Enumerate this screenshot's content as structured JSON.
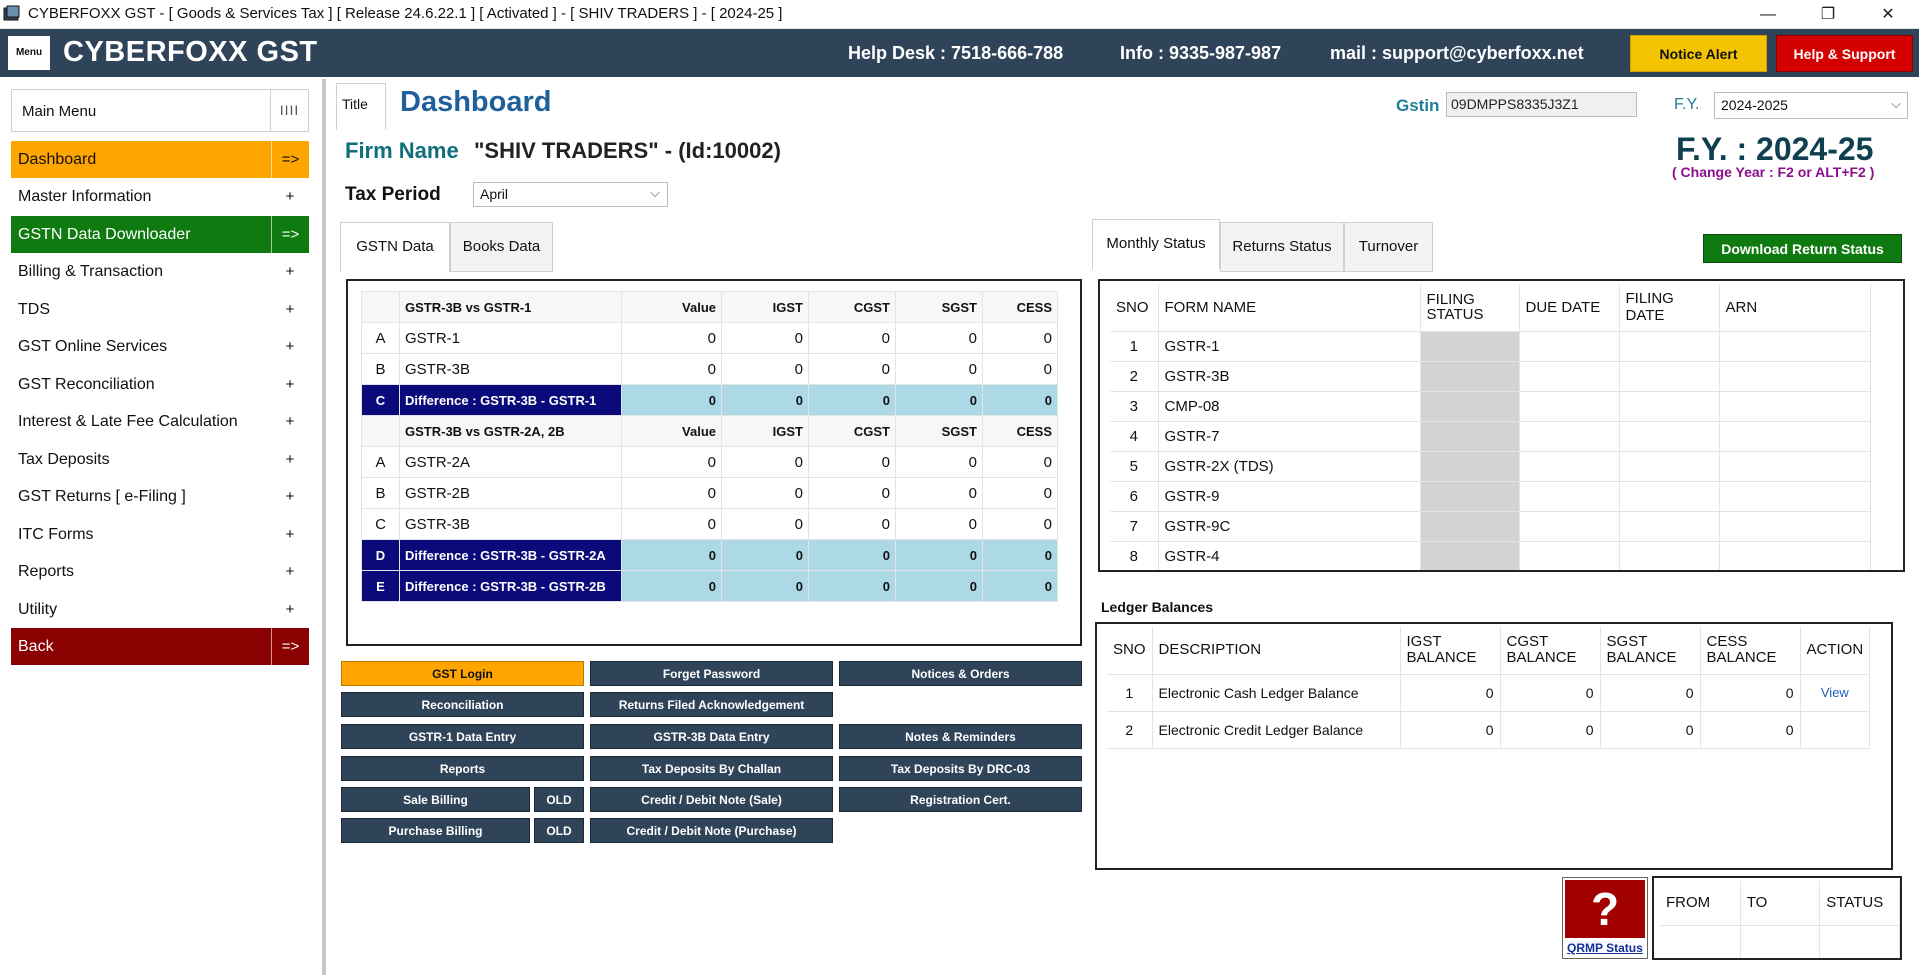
{
  "window": {
    "title": "CYBERFOXX GST - [ Goods & Services Tax ] [ Release 24.6.22.1 ] [ Activated ] - [ SHIV TRADERS ] - [ 2024-25 ]",
    "minimize": "—",
    "restore": "❐",
    "close": "✕"
  },
  "header": {
    "menu_label": "Menu",
    "brand": "CYBERFOXX GST",
    "helpdesk": "Help Desk : 7518-666-788",
    "info": "Info : 9335-987-987",
    "mail": "mail : support@cyberfoxx.net",
    "notice_alert": "Notice Alert",
    "help_support": "Help & Support"
  },
  "sidebar": {
    "main_menu": "Main Menu",
    "grip": "IIII",
    "items": [
      {
        "label": "Dashboard",
        "sign": "=>"
      },
      {
        "label": "Master Information",
        "sign": "+"
      },
      {
        "label": "GSTN Data Downloader",
        "sign": "=>"
      },
      {
        "label": "Billing & Transaction",
        "sign": "+"
      },
      {
        "label": "TDS",
        "sign": "+"
      },
      {
        "label": "GST Online Services",
        "sign": "+"
      },
      {
        "label": "GST Reconciliation",
        "sign": "+"
      },
      {
        "label": "Interest & Late Fee Calculation",
        "sign": "+"
      },
      {
        "label": "Tax Deposits",
        "sign": "+"
      },
      {
        "label": "GST Returns [ e-Filing ]",
        "sign": "+"
      },
      {
        "label": "ITC Forms",
        "sign": "+"
      },
      {
        "label": "Reports",
        "sign": "+"
      },
      {
        "label": "Utility",
        "sign": "+"
      },
      {
        "label": "Back",
        "sign": "=>"
      }
    ]
  },
  "page": {
    "title_tab": "Title",
    "title": "Dashboard",
    "gstin_label": "Gstin",
    "gstin_value": "09DMPPS8335J3Z1",
    "fy_label": "F.Y.",
    "fy_value": "2024-2025",
    "firm_label": "Firm Name",
    "firm_name": "\"SHIV TRADERS\" - (Id:10002)",
    "fy_big": "F.Y. : 2024-25",
    "fy_hint": "( Change Year : F2 or ALT+F2 )",
    "tax_period_label": "Tax Period",
    "tax_period_value": "April",
    "chevron": "⌵"
  },
  "left_tabs": [
    "GSTN Data",
    "Books Data"
  ],
  "gstn": {
    "section1": {
      "title": "GSTR-3B vs GSTR-1",
      "columns": [
        "Value",
        "IGST",
        "CGST",
        "SGST",
        "CESS"
      ],
      "rows": [
        {
          "letter": "A",
          "label": "GSTR-1",
          "values": [
            "0",
            "0",
            "0",
            "0",
            "0"
          ]
        },
        {
          "letter": "B",
          "label": "GSTR-3B",
          "values": [
            "0",
            "0",
            "0",
            "0",
            "0"
          ]
        },
        {
          "letter": "C",
          "label": "Difference : GSTR-3B - GSTR-1",
          "values": [
            "0",
            "0",
            "0",
            "0",
            "0"
          ]
        }
      ]
    },
    "section2": {
      "title": "GSTR-3B vs GSTR-2A, 2B",
      "columns": [
        "Value",
        "IGST",
        "CGST",
        "SGST",
        "CESS"
      ],
      "rows": [
        {
          "letter": "A",
          "label": "GSTR-2A",
          "values": [
            "0",
            "0",
            "0",
            "0",
            "0"
          ]
        },
        {
          "letter": "B",
          "label": "GSTR-2B",
          "values": [
            "0",
            "0",
            "0",
            "0",
            "0"
          ]
        },
        {
          "letter": "C",
          "label": "GSTR-3B",
          "values": [
            "0",
            "0",
            "0",
            "0",
            "0"
          ]
        },
        {
          "letter": "D",
          "label": "Difference : GSTR-3B - GSTR-2A",
          "values": [
            "0",
            "0",
            "0",
            "0",
            "0"
          ]
        },
        {
          "letter": "E",
          "label": "Difference : GSTR-3B - GSTR-2B",
          "values": [
            "0",
            "0",
            "0",
            "0",
            "0"
          ]
        }
      ]
    }
  },
  "actions": {
    "gst_login": "GST Login",
    "forget_password": "Forget Password",
    "notices_orders": "Notices & Orders",
    "reconciliation": "Reconciliation",
    "returns_ack": "Returns Filed Acknowledgement",
    "gstr1_entry": "GSTR-1 Data Entry",
    "gstr3b_entry": "GSTR-3B Data Entry",
    "notes_reminders": "Notes & Reminders",
    "reports": "Reports",
    "tax_by_challan": "Tax Deposits By Challan",
    "tax_by_drc": "Tax Deposits By DRC-03",
    "sale_billing": "Sale Billing",
    "old1": "OLD",
    "credit_debit_sale": "Credit / Debit Note (Sale)",
    "registration_cert": "Registration Cert.",
    "purchase_billing": "Purchase Billing",
    "old2": "OLD",
    "credit_debit_purchase": "Credit / Debit Note (Purchase)"
  },
  "right_tabs": [
    "Monthly Status",
    "Returns Status",
    "Turnover"
  ],
  "download_return_status": "Download Return Status",
  "monthly": {
    "columns": [
      "SNO",
      "FORM NAME",
      "FILING STATUS",
      "DUE DATE",
      "FILING DATE",
      "ARN"
    ],
    "rows": [
      {
        "sno": "1",
        "form": "GSTR-1"
      },
      {
        "sno": "2",
        "form": "GSTR-3B"
      },
      {
        "sno": "3",
        "form": "CMP-08"
      },
      {
        "sno": "4",
        "form": "GSTR-7"
      },
      {
        "sno": "5",
        "form": "GSTR-2X (TDS)"
      },
      {
        "sno": "6",
        "form": "GSTR-9"
      },
      {
        "sno": "7",
        "form": "GSTR-9C"
      },
      {
        "sno": "8",
        "form": "GSTR-4"
      }
    ]
  },
  "ledger": {
    "title": "Ledger Balances",
    "columns": [
      "SNO",
      "DESCRIPTION",
      "IGST BALANCE",
      "CGST BALANCE",
      "SGST BALANCE",
      "CESS BALANCE",
      "ACTION"
    ],
    "rows": [
      {
        "sno": "1",
        "desc": "Electronic Cash Ledger Balance",
        "igst": "0",
        "cgst": "0",
        "sgst": "0",
        "cess": "0",
        "action": "View"
      },
      {
        "sno": "2",
        "desc": "Electronic Credit Ledger Balance",
        "igst": "0",
        "cgst": "0",
        "sgst": "0",
        "cess": "0",
        "action": ""
      }
    ]
  },
  "qrmp": {
    "icon": "?",
    "link": "QRMP Status",
    "columns": [
      "FROM",
      "TO",
      "STATUS"
    ]
  }
}
